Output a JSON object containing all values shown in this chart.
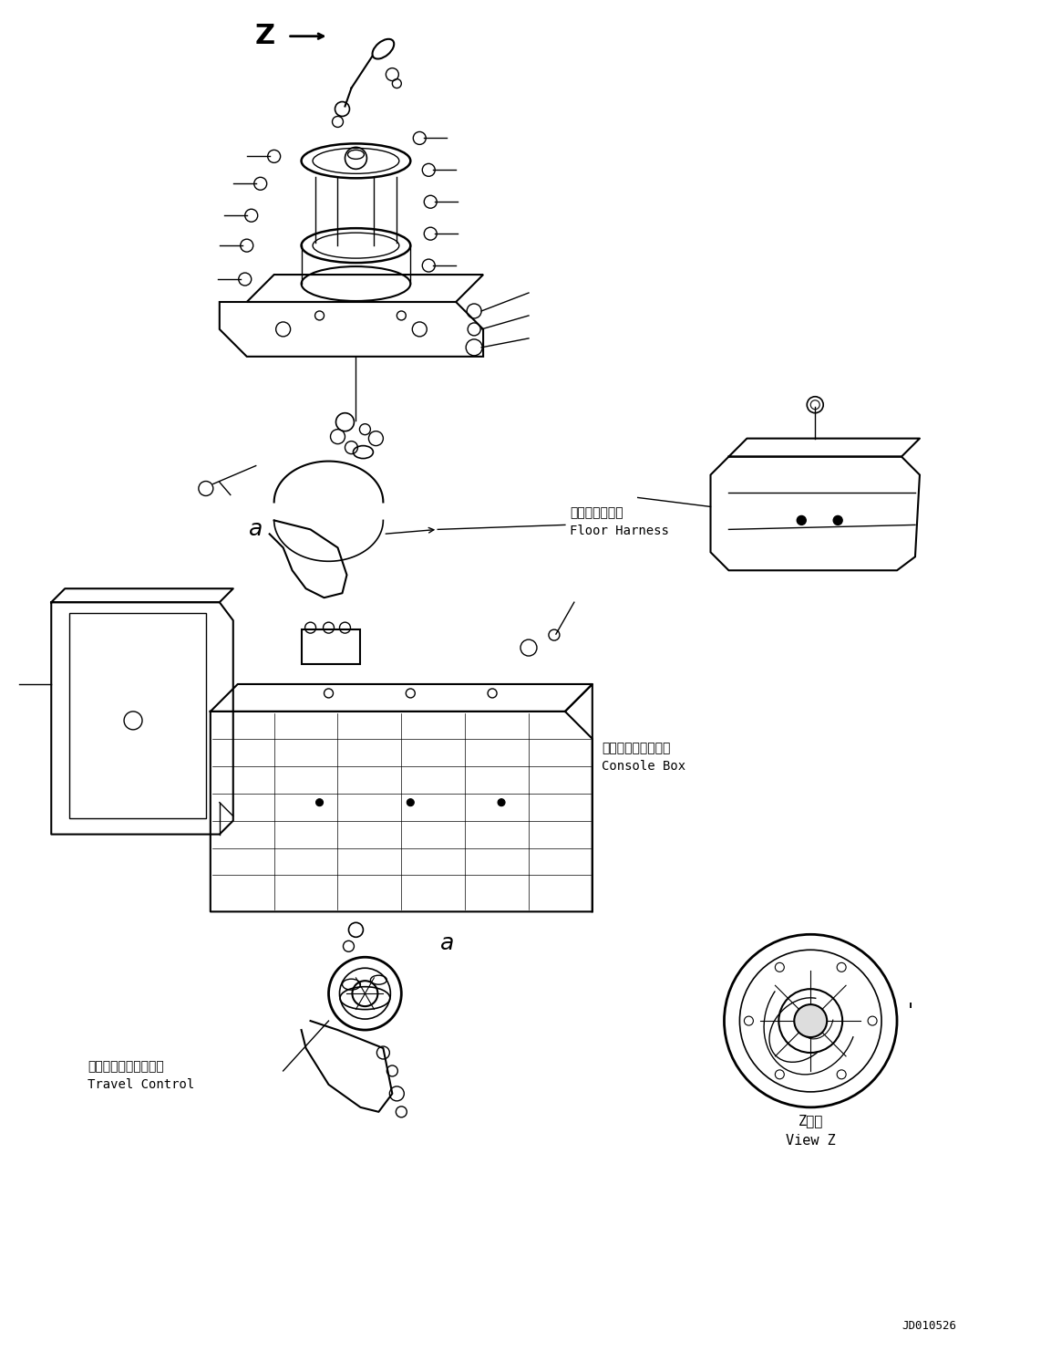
{
  "background_color": "#ffffff",
  "figsize": [
    11.53,
    14.81
  ],
  "dpi": 100,
  "part_id": "JD010526",
  "line_color": "#000000",
  "line_width": 1.0,
  "floor_harness_jp": "フロアハーネス",
  "floor_harness_en": "Floor Harness",
  "console_box_jp": "コンソールボックス",
  "console_box_en": "Console Box",
  "travel_control_jp": "トラベルコントロール",
  "travel_control_en": "Travel Control",
  "view_z_jp": "Z　視",
  "view_z_en": "View Z"
}
